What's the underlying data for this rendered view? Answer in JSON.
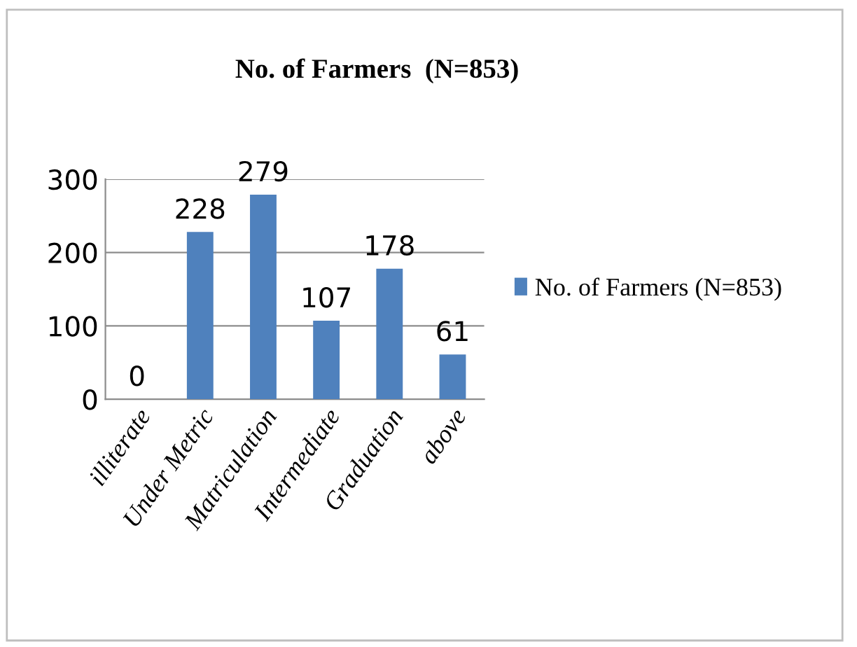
{
  "chart_data": {
    "type": "bar",
    "title": "No. of Farmers  (N=853)",
    "categories": [
      "illiterate",
      "Under Metric",
      "Matriculation",
      "Intermediate",
      "Graduation",
      "above"
    ],
    "series": [
      {
        "name": "No. of Farmers (N=853)",
        "color": "#4f81bd",
        "values": [
          0,
          228,
          279,
          107,
          178,
          61
        ]
      }
    ],
    "ylim": [
      0,
      300
    ],
    "yticks": [
      0,
      100,
      200,
      300
    ],
    "grid": "y",
    "legend": "right",
    "data_labels": true
  }
}
